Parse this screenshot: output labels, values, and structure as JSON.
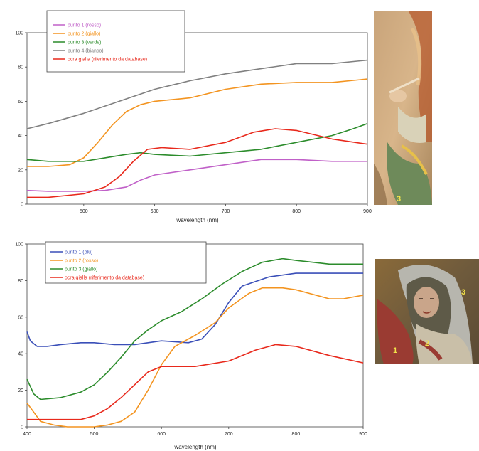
{
  "chart_data": [
    {
      "type": "line",
      "xlabel": "wavelength (nm)",
      "ylabel": "",
      "xlim": [
        420,
        900
      ],
      "ylim": [
        0,
        100
      ],
      "x_ticks": [
        500,
        600,
        700,
        800,
        900
      ],
      "y_ticks": [
        0,
        20,
        40,
        60,
        80,
        100
      ],
      "legend_position": "top-left",
      "series": [
        {
          "name": "punto 1 (rosso)",
          "color": "#c060c8",
          "x": [
            420,
            450,
            500,
            530,
            560,
            580,
            600,
            650,
            700,
            750,
            800,
            850,
            900
          ],
          "values": [
            8,
            7.5,
            7.5,
            8,
            10,
            14,
            17,
            20,
            23,
            26,
            26,
            25,
            25
          ]
        },
        {
          "name": "punto 2 (giallo)",
          "color": "#f39420",
          "x": [
            420,
            450,
            480,
            500,
            520,
            540,
            560,
            580,
            600,
            650,
            700,
            750,
            800,
            850,
            900
          ],
          "values": [
            22,
            22,
            23,
            27,
            36,
            46,
            54,
            58,
            60,
            62,
            67,
            70,
            71,
            71,
            73
          ]
        },
        {
          "name": "punto 3 (verde)",
          "color": "#2c8c2c",
          "x": [
            420,
            450,
            500,
            530,
            560,
            580,
            600,
            650,
            700,
            750,
            800,
            850,
            880,
            900
          ],
          "values": [
            26,
            25,
            25,
            27,
            29,
            30,
            29,
            28,
            30,
            32,
            36,
            40,
            44,
            47
          ]
        },
        {
          "name": "punto 4 (bianco)",
          "color": "#808080",
          "x": [
            420,
            450,
            500,
            550,
            600,
            650,
            700,
            750,
            800,
            850,
            900
          ],
          "values": [
            44,
            47,
            53,
            60,
            67,
            72,
            76,
            79,
            82,
            82,
            84
          ]
        },
        {
          "name": "ocra gialla (riferimento da database)",
          "color": "#e8291c",
          "x": [
            420,
            450,
            500,
            530,
            550,
            570,
            590,
            610,
            650,
            700,
            740,
            770,
            800,
            850,
            900
          ],
          "values": [
            4,
            4,
            6,
            10,
            16,
            25,
            32,
            33,
            32,
            36,
            42,
            44,
            43,
            38,
            35
          ]
        }
      ]
    },
    {
      "type": "line",
      "xlabel": "wavelength (nm)",
      "ylabel": "",
      "xlim": [
        400,
        900
      ],
      "ylim": [
        0,
        100
      ],
      "x_ticks": [
        400,
        500,
        600,
        700,
        800,
        900
      ],
      "y_ticks": [
        0,
        20,
        40,
        60,
        80,
        100
      ],
      "legend_position": "top-left",
      "series": [
        {
          "name": "punto 1 (blu)",
          "color": "#3a4fb8",
          "x": [
            400,
            405,
            415,
            430,
            450,
            480,
            500,
            530,
            560,
            600,
            640,
            660,
            680,
            700,
            720,
            760,
            800,
            850,
            900
          ],
          "values": [
            52,
            47,
            44,
            44,
            45,
            46,
            46,
            45,
            45,
            47,
            46,
            48,
            56,
            68,
            77,
            82,
            84,
            84,
            84
          ]
        },
        {
          "name": "punto 2 (rosso)",
          "color": "#f39420",
          "x": [
            400,
            410,
            420,
            440,
            460,
            480,
            500,
            520,
            540,
            560,
            580,
            600,
            620,
            650,
            680,
            700,
            730,
            750,
            780,
            800,
            850,
            870,
            900
          ],
          "values": [
            13,
            8,
            3,
            1,
            0,
            0,
            0,
            1,
            3,
            8,
            20,
            34,
            44,
            50,
            57,
            65,
            73,
            76,
            76,
            75,
            70,
            70,
            72
          ]
        },
        {
          "name": "punto 3 (giallo)",
          "color": "#2c8c2c",
          "x": [
            400,
            410,
            420,
            450,
            480,
            500,
            520,
            540,
            560,
            580,
            600,
            630,
            660,
            690,
            720,
            750,
            780,
            800,
            850,
            900
          ],
          "values": [
            26,
            18,
            15,
            16,
            19,
            23,
            30,
            38,
            47,
            53,
            58,
            63,
            70,
            78,
            85,
            90,
            92,
            91,
            89,
            89
          ]
        },
        {
          "name": "ocra gialla (riferimento da database)",
          "color": "#e8291c",
          "x": [
            400,
            420,
            450,
            480,
            500,
            520,
            540,
            560,
            580,
            600,
            650,
            700,
            740,
            770,
            800,
            850,
            900
          ],
          "values": [
            4,
            4,
            4,
            4,
            6,
            10,
            16,
            23,
            30,
            33,
            33,
            36,
            42,
            45,
            44,
            39,
            35
          ]
        }
      ]
    }
  ],
  "photos": [
    {
      "description_icon": "fresco-detail-hand-photo",
      "markers": [
        "3"
      ],
      "tones": [
        "#c9a47a",
        "#8f6a45",
        "#d8b58a",
        "#6e8a5a"
      ]
    },
    {
      "description_icon": "fresco-madonna-photo",
      "markers": [
        "1",
        "2",
        "3"
      ],
      "tones": [
        "#5e5a48",
        "#b7b6ae",
        "#9a3b32",
        "#c8c0a8"
      ]
    }
  ]
}
